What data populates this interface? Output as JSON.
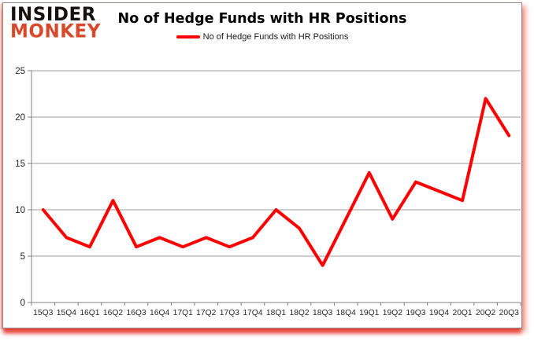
{
  "logo": {
    "line1": "INSIDER",
    "line2": "MONKEY",
    "line2_color": "#d8492b"
  },
  "title": "No of Hedge Funds with HR Positions",
  "legend": {
    "label": "No of Hedge Funds with HR Positions",
    "swatch_color": "#ff0000"
  },
  "chart_data": {
    "type": "line",
    "title": "No of Hedge Funds with HR Positions",
    "categories": [
      "15Q3",
      "15Q4",
      "16Q1",
      "16Q2",
      "16Q3",
      "16Q4",
      "17Q1",
      "17Q2",
      "17Q3",
      "17Q4",
      "18Q1",
      "18Q2",
      "18Q3",
      "18Q4",
      "19Q1",
      "19Q2",
      "19Q3",
      "19Q4",
      "20Q1",
      "20Q2",
      "20Q3"
    ],
    "series": [
      {
        "name": "No of Hedge Funds with HR Positions",
        "color": "#ff0000",
        "values": [
          10,
          7,
          6,
          11,
          6,
          7,
          6,
          7,
          6,
          7,
          10,
          8,
          4,
          9,
          14,
          9,
          13,
          12,
          11,
          22,
          18
        ]
      }
    ],
    "xlabel": "",
    "ylabel": "",
    "ylim": [
      0,
      25
    ],
    "yticks": [
      0,
      5,
      10,
      15,
      20,
      25
    ],
    "grid": "horizontal",
    "legend_position": "top",
    "gridline_color": "#9d9d9d",
    "axis_color": "#808080",
    "tick_label_color": "#262626"
  }
}
